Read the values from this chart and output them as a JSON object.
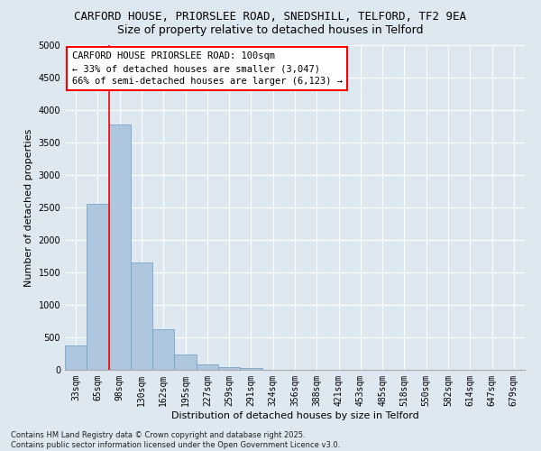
{
  "title": "CARFORD HOUSE, PRIORSLEE ROAD, SNEDSHILL, TELFORD, TF2 9EA",
  "subtitle": "Size of property relative to detached houses in Telford",
  "xlabel": "Distribution of detached houses by size in Telford",
  "ylabel": "Number of detached properties",
  "categories": [
    "33sqm",
    "65sqm",
    "98sqm",
    "130sqm",
    "162sqm",
    "195sqm",
    "227sqm",
    "259sqm",
    "291sqm",
    "324sqm",
    "356sqm",
    "388sqm",
    "421sqm",
    "453sqm",
    "485sqm",
    "518sqm",
    "550sqm",
    "582sqm",
    "614sqm",
    "647sqm",
    "679sqm"
  ],
  "values": [
    380,
    2550,
    3780,
    1650,
    620,
    230,
    90,
    45,
    30,
    0,
    0,
    0,
    0,
    0,
    0,
    0,
    0,
    0,
    0,
    0,
    0
  ],
  "bar_color": "#aec6de",
  "bar_edge_color": "#6a9bbe",
  "vline_x": 1.5,
  "vline_color": "red",
  "ylim": [
    0,
    5000
  ],
  "yticks": [
    0,
    500,
    1000,
    1500,
    2000,
    2500,
    3000,
    3500,
    4000,
    4500,
    5000
  ],
  "annotation_text": "CARFORD HOUSE PRIORSLEE ROAD: 100sqm\n← 33% of detached houses are smaller (3,047)\n66% of semi-detached houses are larger (6,123) →",
  "bg_color": "#dde8f0",
  "footer_text": "Contains HM Land Registry data © Crown copyright and database right 2025.\nContains public sector information licensed under the Open Government Licence v3.0.",
  "title_fontsize": 9,
  "subtitle_fontsize": 9,
  "label_fontsize": 8,
  "tick_fontsize": 7,
  "annotation_fontsize": 7.5,
  "footer_fontsize": 6
}
